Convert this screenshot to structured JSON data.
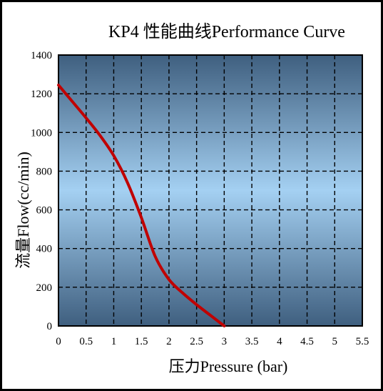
{
  "chart_data": {
    "type": "line",
    "title": "KP4 性能曲线Performance Curve",
    "xlabel": "压力Pressure (bar)",
    "ylabel": "流量Flow(cc/min)",
    "xlim": [
      0,
      5.5
    ],
    "ylim": [
      0,
      1400
    ],
    "x_ticks": [
      "0",
      "0.5",
      "1",
      "1.5",
      "2",
      "2.5",
      "3",
      "3.5",
      "4",
      "4.5",
      "5",
      "5.5"
    ],
    "y_ticks": [
      "0",
      "200",
      "400",
      "600",
      "800",
      "1000",
      "1200",
      "1400"
    ],
    "grid": true,
    "series": [
      {
        "x": [
          0,
          0.25,
          0.5,
          0.75,
          1.0,
          1.25,
          1.5,
          1.75,
          2.0,
          2.25,
          2.5,
          2.75,
          3.0
        ],
        "y": [
          1245,
          1160,
          1075,
          985,
          880,
          740,
          560,
          360,
          240,
          170,
          110,
          55,
          0
        ],
        "color": "#c00000"
      }
    ],
    "background_gradient": [
      "#3f5f7f",
      "#a4d0f2",
      "#3f5f7f"
    ]
  }
}
